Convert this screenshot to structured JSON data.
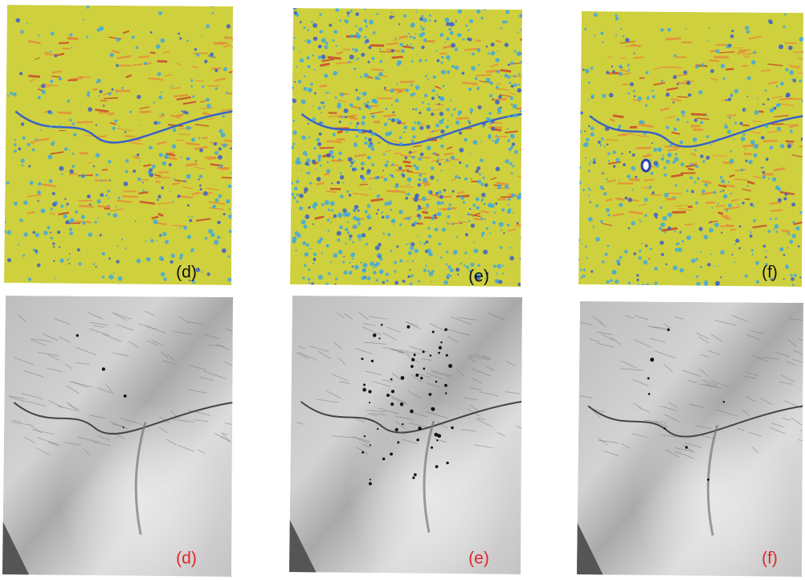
{
  "top_row": [
    {
      "label": "(d)"
    },
    {
      "label": "(e)"
    },
    {
      "label": "(f)"
    }
  ],
  "bottom_row": [
    {
      "label": "(d)"
    },
    {
      "label": "(e)"
    },
    {
      "label": "(f)"
    }
  ]
}
